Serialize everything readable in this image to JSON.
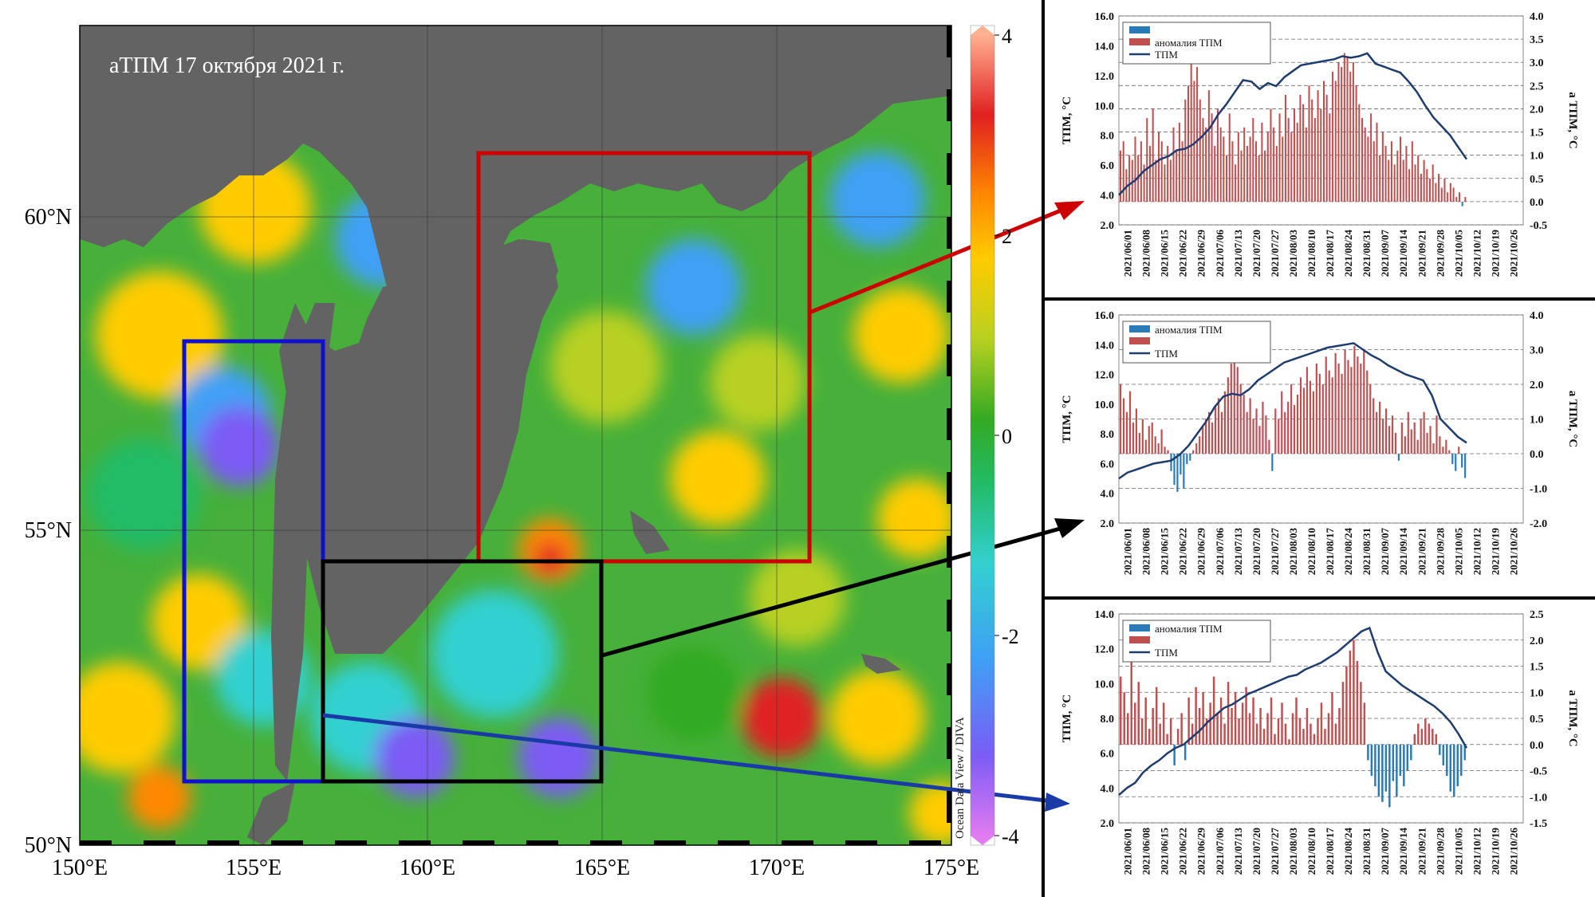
{
  "map": {
    "title": "аТПМ 17 октября 2021 г.",
    "lon_ticks": [
      "150°E",
      "155°E",
      "160°E",
      "165°E",
      "170°E",
      "175°E"
    ],
    "lat_ticks": [
      "50°N",
      "55°N",
      "60°N"
    ],
    "colorbar": {
      "ticks": [
        "4",
        "2",
        "0",
        "-2",
        "-4"
      ],
      "min": -4,
      "max": 4,
      "colors": [
        "#e07bf0",
        "#7b5cf5",
        "#3fa0f5",
        "#33d0d0",
        "#22bb66",
        "#33aa22",
        "#b8d020",
        "#ffcc00",
        "#ff8800",
        "#e02020",
        "#ffb090"
      ]
    },
    "watermark": "Ocean Data View / DIVA",
    "colors": {
      "land": "#636363",
      "red_box": "#cc0000",
      "blue_box": "#1010d0",
      "black_box": "#000000"
    }
  },
  "chart_data": [
    {
      "type": "bar+line",
      "panel": "top",
      "xlabels": [
        "2021/06/01",
        "2021/06/08",
        "2021/06/15",
        "2021/06/22",
        "2021/06/29",
        "2021/07/06",
        "2021/07/13",
        "2021/07/20",
        "2021/07/27",
        "2021/08/03",
        "2021/08/10",
        "2021/08/17",
        "2021/08/24",
        "2021/08/31",
        "2021/09/07",
        "2021/09/14",
        "2021/09/21",
        "2021/09/28",
        "2021/10/05",
        "2021/10/12",
        "2021/10/19",
        "2021/10/26"
      ],
      "ylabel_left": "ТПМ, °С",
      "ylabel_right": "а ТПМ, °С",
      "left_ticks": [
        "16.0",
        "14.0",
        "12.0",
        "10.0",
        "8.0",
        "6.0",
        "4.0",
        "2.0"
      ],
      "right_ticks": [
        "4.0",
        "3.5",
        "3.0",
        "2.5",
        "2.0",
        "1.5",
        "1.0",
        "0.5",
        "0.0",
        "-0.5"
      ],
      "ylim_left": [
        2,
        16
      ],
      "ylim_right": [
        -0.5,
        4.0
      ],
      "legend": [
        "",
        "аномалия ТПМ",
        "ТПМ"
      ],
      "sst": [
        4.0,
        4.6,
        5.0,
        5.6,
        6.0,
        6.4,
        6.6,
        7.0,
        7.1,
        7.4,
        7.9,
        8.5,
        9.4,
        10.1,
        10.9,
        11.7,
        11.6,
        11.1,
        11.5,
        11.3,
        11.9,
        12.3,
        12.7,
        12.8,
        12.9,
        13.0,
        13.1,
        13.3,
        13.2,
        13.3,
        13.5,
        12.8,
        12.6,
        12.4,
        12.2,
        11.6,
        10.9,
        10.0,
        9.2,
        8.6,
        8.0,
        7.2,
        6.4
      ],
      "anom_bars": [
        1.1,
        1.3,
        0.7,
        1.0,
        0.9,
        1.4,
        1.0,
        1.3,
        0.8,
        1.8,
        1.2,
        2.0,
        0.9,
        1.5,
        1.3,
        0.8,
        1.2,
        0.9,
        1.6,
        1.1,
        1.7,
        1.3,
        2.2,
        2.5,
        3.1,
        2.6,
        2.9,
        2.2,
        1.8,
        1.6,
        2.4,
        1.9,
        1.2,
        2.0,
        1.6,
        1.4,
        1.0,
        1.9,
        1.3,
        0.8,
        1.5,
        1.1,
        1.6,
        1.2,
        1.4,
        1.8,
        1.3,
        1.0,
        1.7,
        1.1,
        1.5,
        2.0,
        1.6,
        1.2,
        1.9,
        1.4,
        2.3,
        1.8,
        1.5,
        2.0,
        1.7,
        2.3,
        2.1,
        1.6,
        2.5,
        2.2,
        1.8,
        2.4,
        2.0,
        2.6,
        2.3,
        1.9,
        2.8,
        2.6,
        3.0,
        2.9,
        3.2,
        3.1,
        2.8,
        3.0,
        2.5,
        2.1,
        1.8,
        1.6,
        1.4,
        1.9,
        1.3,
        1.7,
        1.0,
        1.5,
        1.2,
        0.9,
        1.3,
        0.8,
        1.1,
        1.4,
        0.9,
        1.2,
        0.7,
        1.3,
        0.8,
        1.0,
        0.6,
        0.9,
        0.7,
        0.5,
        0.8,
        0.4,
        0.6,
        0.3,
        0.5,
        0.2,
        0.4,
        0.3,
        0.1,
        0.2,
        -0.1,
        0.1
      ]
    },
    {
      "type": "bar+line",
      "panel": "middle",
      "xlabels": [
        "2021/06/01",
        "2021/06/08",
        "2021/06/15",
        "2021/06/22",
        "2021/06/29",
        "2021/07/06",
        "2021/07/13",
        "2021/07/20",
        "2021/07/27",
        "2021/08/03",
        "2021/08/10",
        "2021/08/17",
        "2021/08/24",
        "2021/08/31",
        "2021/09/07",
        "2021/09/14",
        "2021/09/21",
        "2021/09/28",
        "2021/10/05",
        "2021/10/12",
        "2021/10/19",
        "2021/10/26"
      ],
      "ylabel_left": "ТПМ, °С",
      "ylabel_right": "а ТПМ, °С",
      "left_ticks": [
        "16.0",
        "14.0",
        "12.0",
        "10.0",
        "8.0",
        "6.0",
        "4.0",
        "2.0"
      ],
      "right_ticks": [
        "4.0",
        "3.0",
        "2.0",
        "1.0",
        "0.0",
        "-1.0",
        "-2.0"
      ],
      "ylim_left": [
        2,
        16
      ],
      "ylim_right": [
        -2.0,
        4.0
      ],
      "legend": [
        "аномалия ТПМ",
        "",
        "ТПМ"
      ],
      "sst": [
        5.0,
        5.4,
        5.6,
        5.8,
        6.0,
        6.1,
        6.2,
        6.6,
        7.2,
        8.0,
        8.8,
        9.8,
        10.5,
        10.7,
        10.6,
        11.0,
        11.6,
        12.0,
        12.4,
        12.8,
        13.0,
        13.2,
        13.4,
        13.6,
        13.8,
        13.9,
        14.0,
        14.1,
        13.7,
        13.3,
        13.0,
        12.6,
        12.3,
        12.0,
        11.8,
        11.6,
        10.6,
        9.0,
        8.4,
        7.8,
        7.4
      ],
      "anom_bars": [
        2.0,
        1.6,
        1.2,
        1.8,
        0.9,
        1.3,
        0.6,
        1.0,
        0.4,
        0.8,
        0.9,
        0.5,
        0.3,
        0.7,
        0.2,
        0.1,
        -0.5,
        -0.9,
        -1.1,
        -0.6,
        -1.0,
        -0.3,
        -0.2,
        0.1,
        0.3,
        0.5,
        0.8,
        1.0,
        1.2,
        0.9,
        1.4,
        1.6,
        1.2,
        1.8,
        2.2,
        2.6,
        3.0,
        2.5,
        2.0,
        1.7,
        1.2,
        1.6,
        1.0,
        1.3,
        0.8,
        1.5,
        1.1,
        0.4,
        -0.5,
        1.3,
        1.0,
        1.8,
        1.2,
        1.5,
        2.0,
        1.4,
        1.7,
        2.2,
        1.9,
        2.5,
        2.1,
        1.8,
        2.6,
        2.3,
        2.0,
        2.8,
        2.4,
        2.2,
        2.9,
        2.6,
        2.3,
        3.0,
        2.7,
        2.5,
        3.1,
        2.8,
        2.6,
        3.0,
        2.4,
        2.0,
        1.6,
        1.2,
        1.5,
        1.0,
        1.3,
        0.8,
        1.1,
        0.6,
        -0.2,
        0.9,
        0.5,
        1.2,
        0.7,
        0.9,
        0.4,
        1.0,
        1.2,
        0.6,
        0.8,
        0.3,
        1.1,
        0.5,
        0.2,
        0.4,
        0.1,
        -0.3,
        -0.5,
        0.2,
        -0.4,
        -0.7
      ]
    },
    {
      "type": "bar+line",
      "panel": "bottom",
      "xlabels": [
        "2021/06/01",
        "2021/06/08",
        "2021/06/15",
        "2021/06/22",
        "2021/06/29",
        "2021/07/06",
        "2021/07/13",
        "2021/07/20",
        "2021/07/27",
        "2021/08/03",
        "2021/08/10",
        "2021/08/17",
        "2021/08/24",
        "2021/08/31",
        "2021/09/07",
        "2021/09/14",
        "2021/09/21",
        "2021/09/28",
        "2021/10/05",
        "2021/10/12",
        "2021/10/19",
        "2021/10/26"
      ],
      "ylabel_left": "ТПМ, °С",
      "ylabel_right": "а ТПМ, °С",
      "left_ticks": [
        "14.0",
        "12.0",
        "10.0",
        "8.0",
        "6.0",
        "4.0",
        "2.0"
      ],
      "right_ticks": [
        "2.5",
        "2.0",
        "1.5",
        "1.0",
        "0.5",
        "0.0",
        "-0.5",
        "-1.0",
        "-1.5"
      ],
      "ylim_left": [
        2,
        14
      ],
      "ylim_right": [
        -1.5,
        2.5
      ],
      "legend": [
        "аномалия ТПМ",
        "",
        "ТПМ"
      ],
      "sst": [
        3.6,
        4.0,
        4.3,
        4.9,
        5.3,
        5.6,
        6.0,
        6.3,
        6.5,
        6.9,
        7.3,
        7.8,
        8.2,
        8.6,
        8.8,
        9.1,
        9.4,
        9.6,
        9.8,
        10.0,
        10.2,
        10.4,
        10.5,
        10.8,
        11.0,
        11.2,
        11.5,
        11.8,
        12.2,
        12.6,
        13.0,
        13.2,
        11.8,
        10.7,
        10.3,
        9.9,
        9.6,
        9.3,
        9.0,
        8.7,
        8.3,
        7.8,
        7.1,
        6.3
      ],
      "anom_bars": [
        1.3,
        1.0,
        0.6,
        1.6,
        0.8,
        1.2,
        0.5,
        0.9,
        0.3,
        0.7,
        1.1,
        0.4,
        0.8,
        0.2,
        0.5,
        -0.4,
        0.3,
        0.6,
        -0.3,
        0.9,
        0.4,
        1.1,
        0.7,
        1.0,
        0.5,
        0.8,
        1.3,
        0.6,
        0.9,
        0.4,
        1.2,
        0.7,
        1.0,
        0.5,
        0.8,
        1.1,
        0.6,
        0.9,
        0.4,
        0.7,
        0.3,
        0.6,
        0.9,
        0.2,
        0.5,
        0.8,
        0.4,
        0.1,
        0.6,
        0.9,
        0.5,
        0.3,
        0.7,
        0.4,
        0.2,
        0.5,
        0.8,
        0.3,
        0.6,
        1.0,
        0.4,
        0.7,
        1.2,
        1.5,
        1.8,
        2.0,
        1.6,
        1.2,
        0.8,
        -0.3,
        -0.6,
        -0.8,
        -1.0,
        -1.1,
        -0.9,
        -1.2,
        -0.7,
        -1.0,
        -0.6,
        -0.8,
        -0.5,
        -0.3,
        0.2,
        0.4,
        0.3,
        0.5,
        0.4,
        0.3,
        0.2,
        -0.2,
        -0.4,
        -0.6,
        -0.9,
        -1.0,
        -0.8,
        -0.6,
        -0.3
      ]
    }
  ]
}
